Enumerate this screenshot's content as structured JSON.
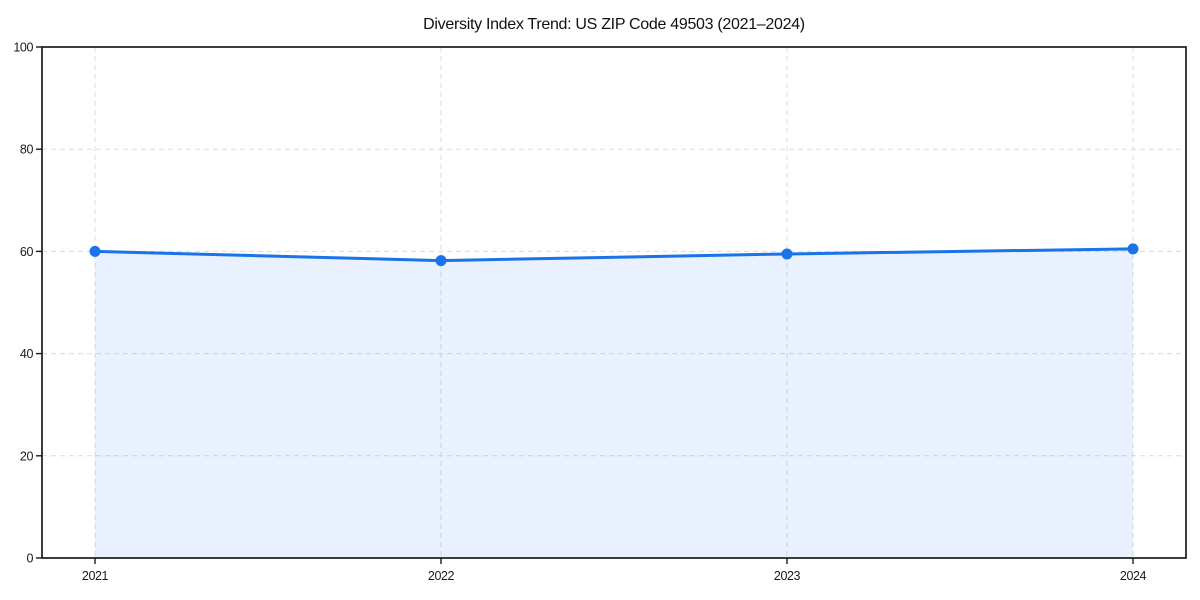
{
  "title": "Diversity Index Trend: US ZIP Code 49503 (2021–2024)",
  "chart_data": {
    "type": "area",
    "title": "Diversity Index Trend: US ZIP Code 49503 (2021–2024)",
    "x": [
      "2021",
      "2022",
      "2023",
      "2024"
    ],
    "series": [
      {
        "name": "Diversity Index",
        "values": [
          60.0,
          58.2,
          59.5,
          60.5
        ]
      }
    ],
    "xlabel": "",
    "ylabel": "",
    "ylim": [
      0,
      100
    ],
    "yticks": [
      0,
      20,
      40,
      60,
      80,
      100
    ],
    "grid": true,
    "grid_style": "dashed",
    "legend": "none",
    "marker": "circle",
    "colors": {
      "line": "#1a73e8",
      "marker": "#1a73e8",
      "fill": "rgba(26,115,232,0.10)",
      "grid": "#dcdcdc",
      "spine": "#1a1a1a",
      "text": "#1a1a1a",
      "background": "#ffffff"
    }
  }
}
